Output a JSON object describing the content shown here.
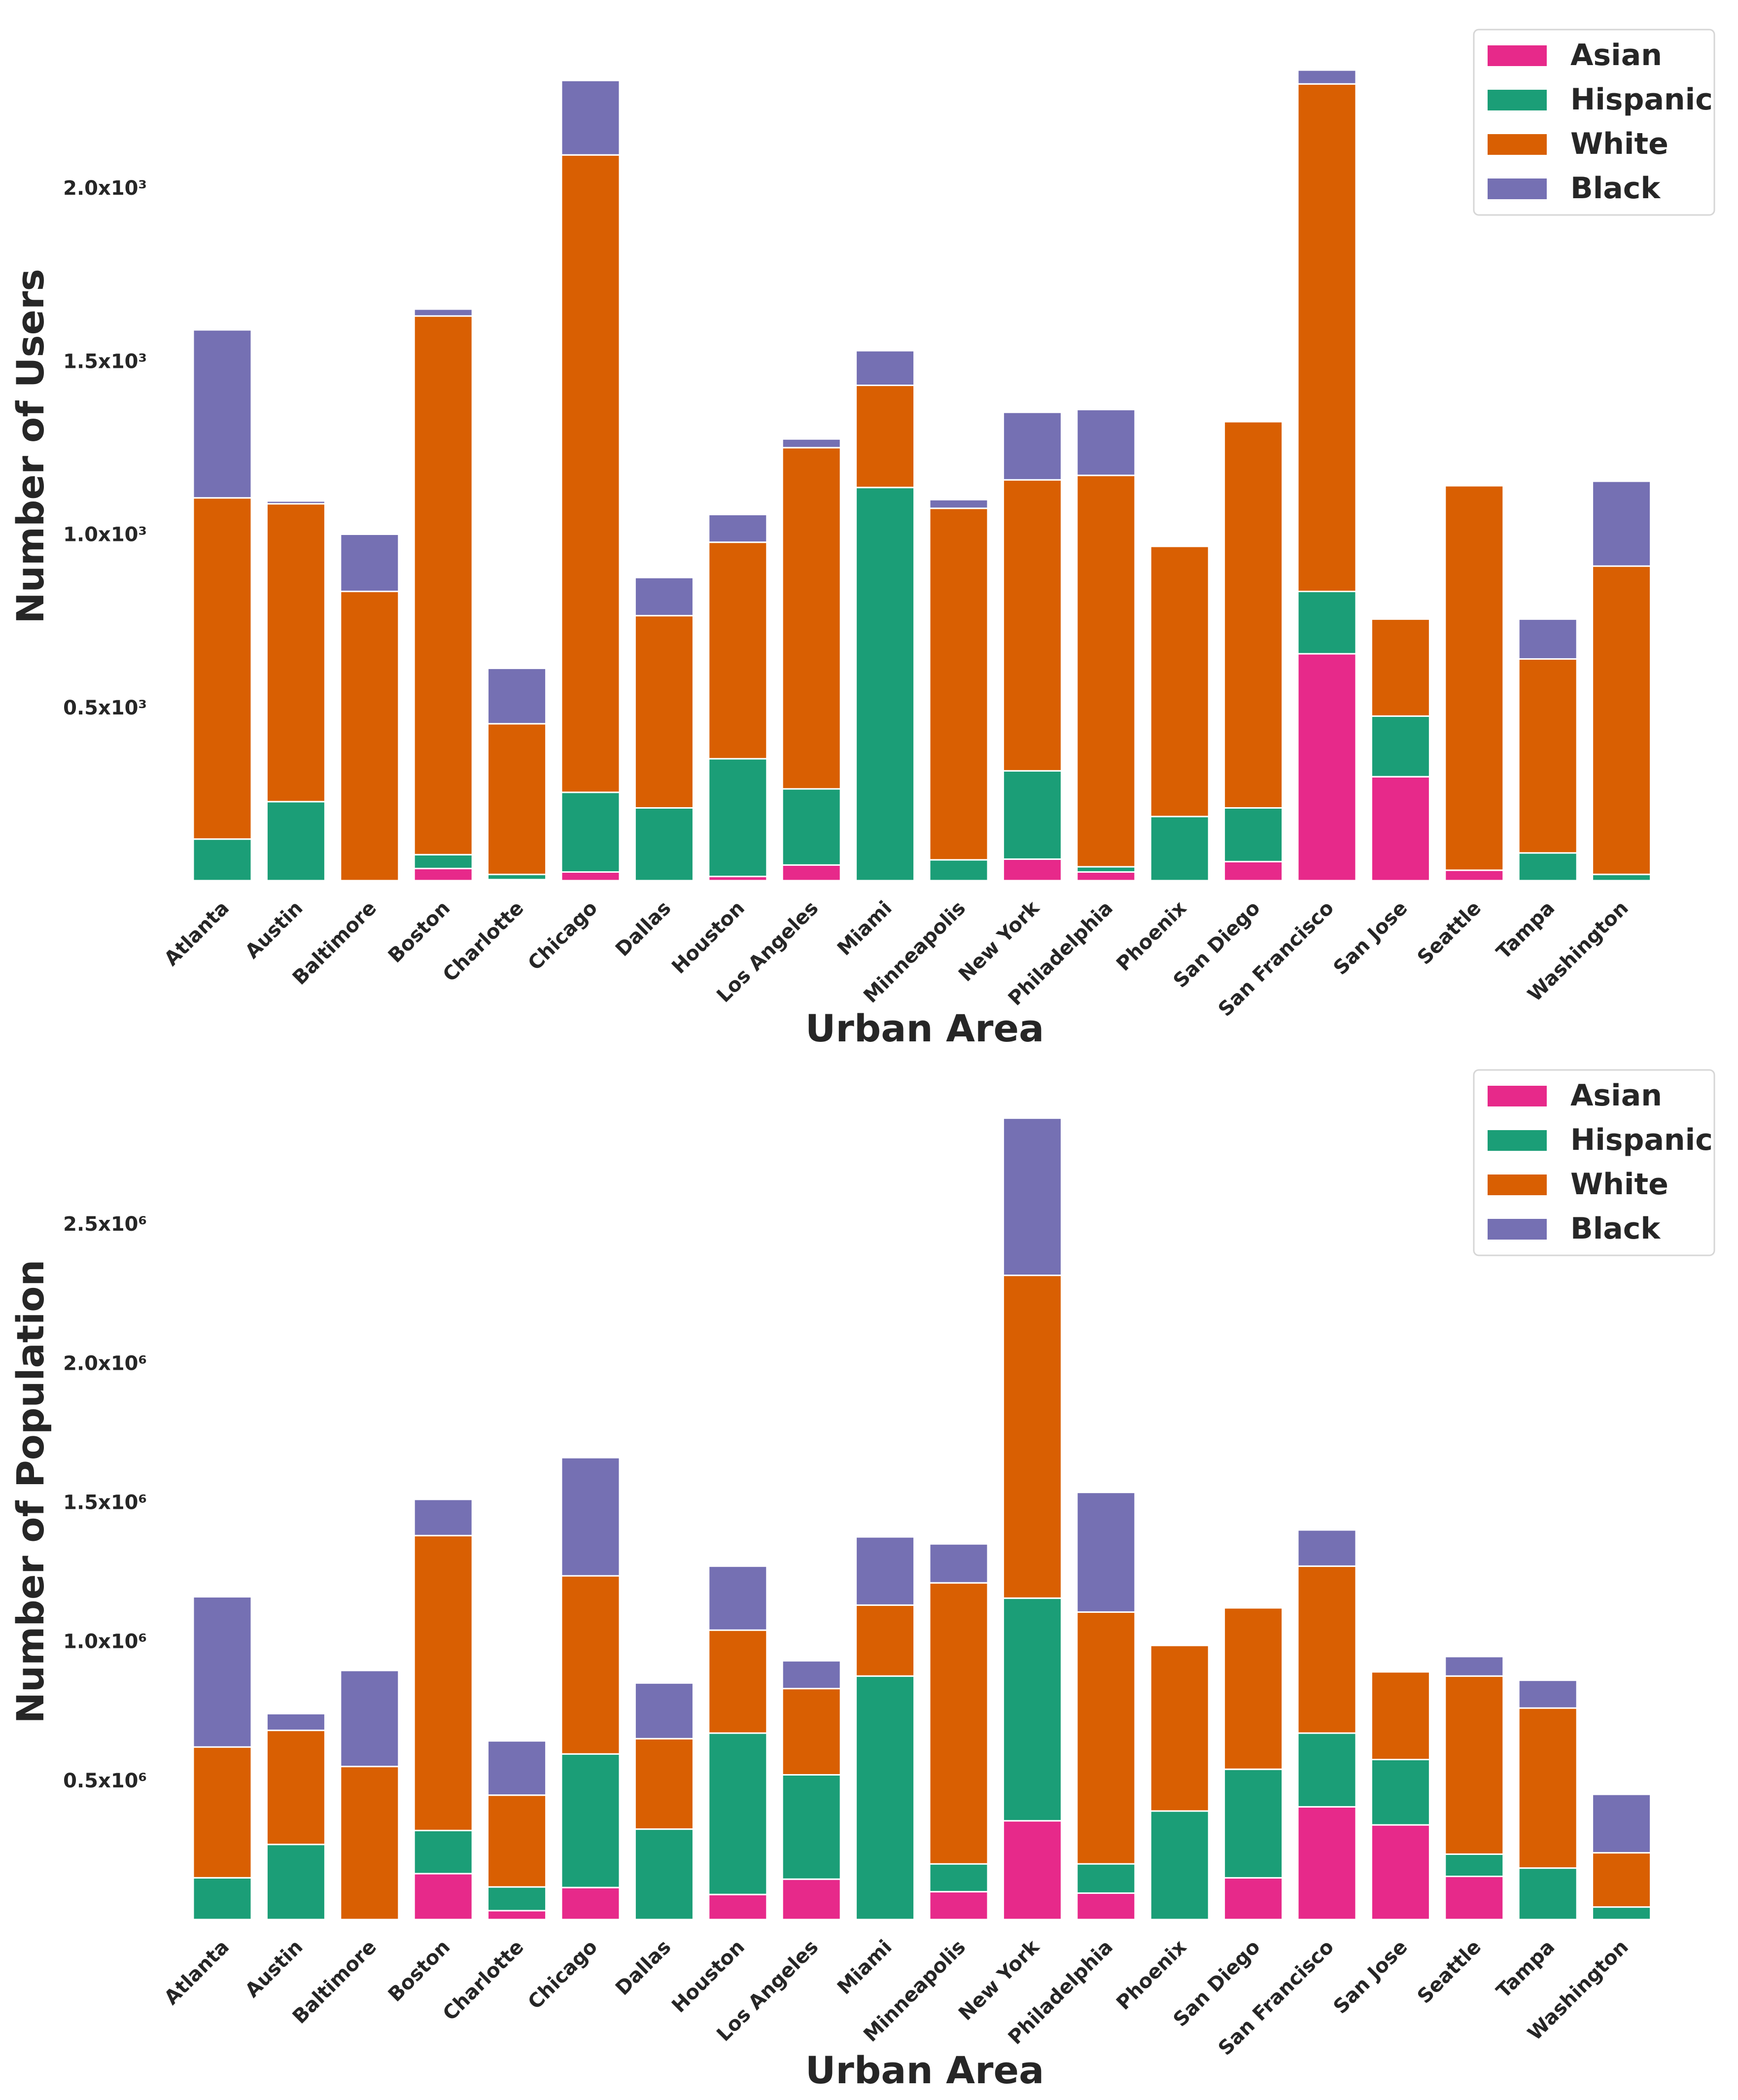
{
  "chart_data": [
    {
      "type": "bar",
      "stacked": true,
      "xlabel": "Urban Area",
      "ylabel": "Number of Users",
      "ylim": [
        0,
        2400
      ],
      "ytick_labels": [
        "0.5x10³",
        "1.0x10³",
        "1.5x10³",
        "2.0x10³"
      ],
      "ytick_values": [
        500,
        1000,
        1500,
        2000
      ],
      "categories": [
        "Atlanta",
        "Austin",
        "Baltimore",
        "Boston",
        "Charlotte",
        "Chicago",
        "Dallas",
        "Houston",
        "Los Angeles",
        "Miami",
        "Minneapolis",
        "New York",
        "Philadelphia",
        "Phoenix",
        "San Diego",
        "San Francisco",
        "San Jose",
        "Seattle",
        "Tampa",
        "Washington"
      ],
      "series": [
        {
          "name": "Asian",
          "color": "#e7298a",
          "values": [
            0,
            0,
            0,
            35,
            3,
            25,
            0,
            12,
            45,
            0,
            0,
            62,
            25,
            0,
            55,
            655,
            300,
            30,
            0,
            0
          ]
        },
        {
          "name": "Hispanic",
          "color": "#1b9e77",
          "values": [
            120,
            228,
            0,
            40,
            15,
            230,
            210,
            340,
            220,
            1135,
            60,
            255,
            15,
            185,
            155,
            180,
            175,
            0,
            80,
            18
          ]
        },
        {
          "name": "White",
          "color": "#d95f02",
          "values": [
            985,
            860,
            835,
            1555,
            435,
            1840,
            555,
            625,
            985,
            295,
            1015,
            840,
            1130,
            780,
            1115,
            1465,
            280,
            1110,
            560,
            890
          ]
        },
        {
          "name": "Black",
          "color": "#7570b3",
          "values": [
            485,
            8,
            165,
            20,
            160,
            215,
            110,
            80,
            25,
            100,
            25,
            195,
            190,
            0,
            0,
            40,
            0,
            0,
            115,
            245
          ]
        }
      ],
      "legend": {
        "labels": [
          "Asian",
          "Hispanic",
          "White",
          "Black"
        ],
        "position": "top-right"
      }
    },
    {
      "type": "bar",
      "stacked": true,
      "xlabel": "Urban Area",
      "ylabel": "Number of Population",
      "ylim": [
        0,
        3000000
      ],
      "ytick_labels": [
        "0.5x10⁶",
        "1.0x10⁶",
        "1.5x10⁶",
        "2.0x10⁶",
        "2.5x10⁶"
      ],
      "ytick_values": [
        500000,
        1000000,
        1500000,
        2000000,
        2500000
      ],
      "categories": [
        "Atlanta",
        "Austin",
        "Baltimore",
        "Boston",
        "Charlotte",
        "Chicago",
        "Dallas",
        "Houston",
        "Los Angeles",
        "Miami",
        "Minneapolis",
        "New York",
        "Philadelphia",
        "Phoenix",
        "San Diego",
        "San Francisco",
        "San Jose",
        "Seattle",
        "Tampa",
        "Washington"
      ],
      "series": [
        {
          "name": "Asian",
          "color": "#e7298a",
          "values": [
            0,
            0,
            0,
            165000,
            32000,
            115000,
            0,
            90000,
            145000,
            0,
            100000,
            355000,
            95000,
            0,
            150000,
            405000,
            340000,
            155000,
            0,
            0
          ]
        },
        {
          "name": "Hispanic",
          "color": "#1b9e77",
          "values": [
            150000,
            270000,
            0,
            155000,
            85000,
            480000,
            325000,
            580000,
            375000,
            875000,
            100000,
            800000,
            105000,
            390000,
            390000,
            265000,
            235000,
            80000,
            185000,
            45000
          ]
        },
        {
          "name": "White",
          "color": "#d95f02",
          "values": [
            470000,
            410000,
            550000,
            1060000,
            330000,
            640000,
            325000,
            370000,
            310000,
            255000,
            1010000,
            1160000,
            905000,
            595000,
            580000,
            600000,
            315000,
            640000,
            575000,
            195000
          ]
        },
        {
          "name": "Black",
          "color": "#7570b3",
          "values": [
            540000,
            60000,
            345000,
            130000,
            195000,
            425000,
            200000,
            230000,
            100000,
            245000,
            140000,
            565000,
            430000,
            0,
            0,
            130000,
            0,
            70000,
            100000,
            210000
          ]
        }
      ],
      "legend": {
        "labels": [
          "Asian",
          "Hispanic",
          "White",
          "Black"
        ],
        "position": "top-right"
      }
    }
  ]
}
